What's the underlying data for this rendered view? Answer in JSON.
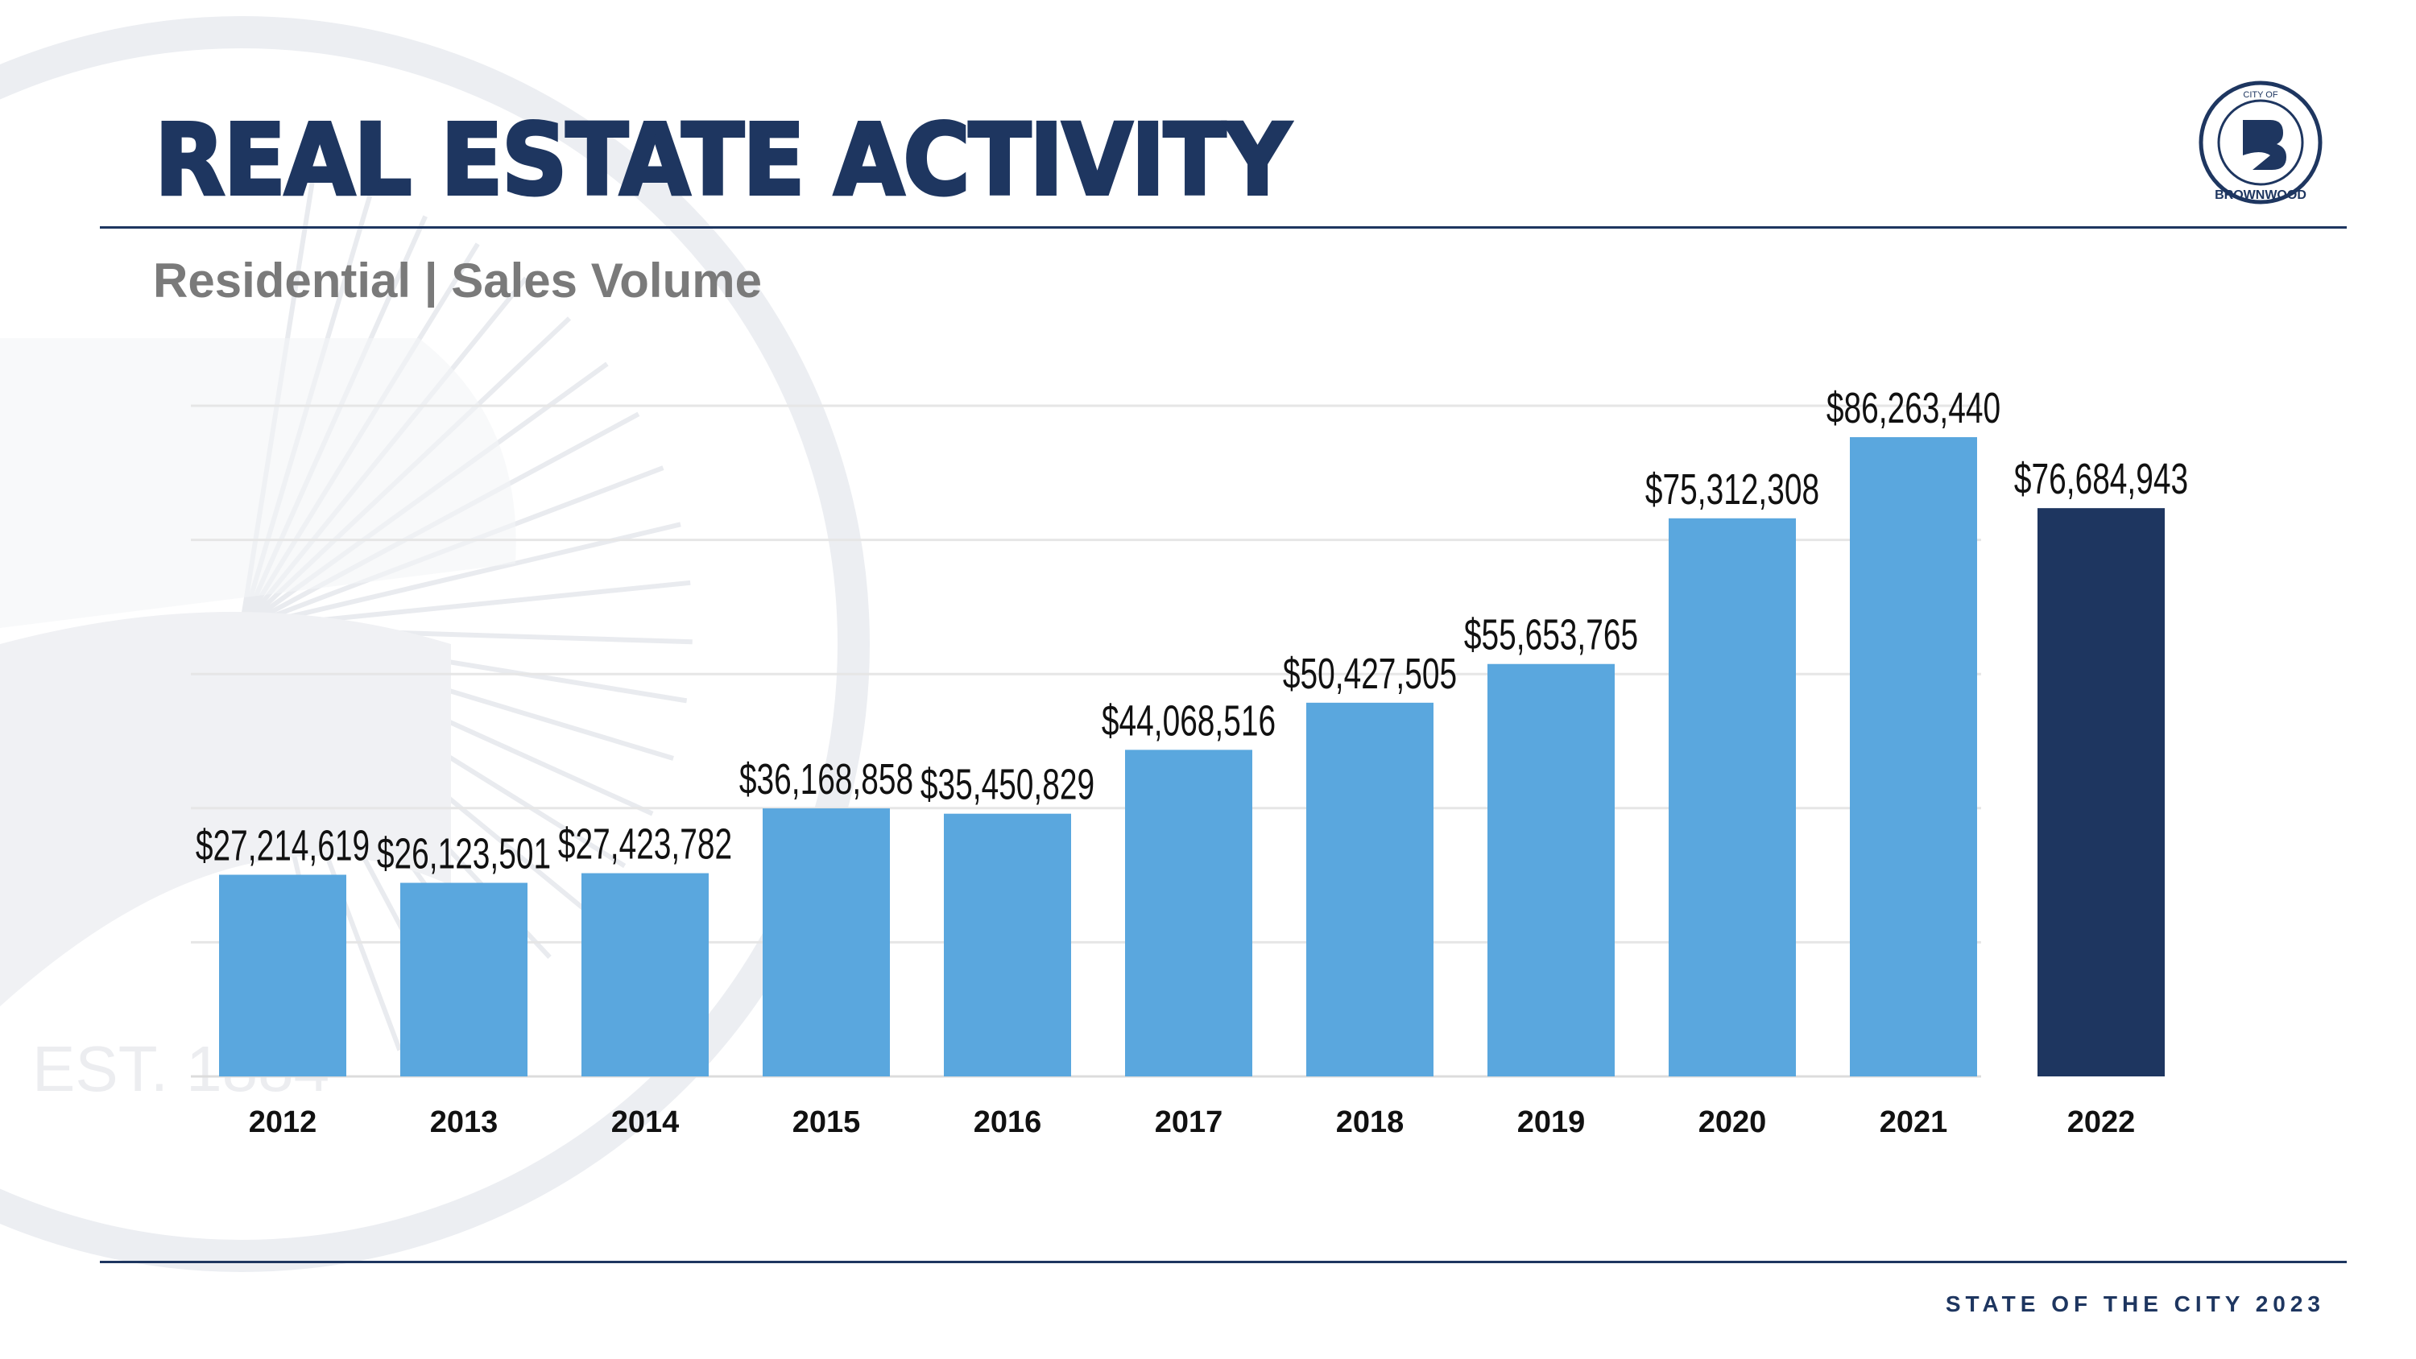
{
  "header": {
    "title": "REAL ESTATE ACTIVITY",
    "subtitle": "Residential | Sales Volume"
  },
  "logo": {
    "top_text": "CITY OF",
    "bottom_text": "BROWNWOOD",
    "est": "EST. 1884"
  },
  "watermark": {
    "text": "EST. 1884"
  },
  "footer": {
    "text": "STATE OF THE CITY 2023"
  },
  "colors": {
    "bar": "#5aa7de",
    "highlight": "#1e3660",
    "grid": "#e6e6e6",
    "navy": "#1e3660"
  },
  "chart_data": {
    "type": "bar",
    "title": "Residential | Sales Volume",
    "xlabel": "",
    "ylabel": "",
    "ylim": [
      0,
      90500000
    ],
    "grid": true,
    "categories": [
      "2012",
      "2013",
      "2014",
      "2015",
      "2016",
      "2017",
      "2018",
      "2019",
      "2020",
      "2021",
      "2022"
    ],
    "values": [
      27214619,
      26123501,
      27423782,
      36168858,
      35450829,
      44068516,
      50427505,
      55653765,
      75312308,
      86263440,
      76684943
    ],
    "labels": [
      "$27,214,619",
      "$26,123,501",
      "$27,423,782",
      "$36,168,858",
      "$35,450,829",
      "$44,068,516",
      "$50,427,505",
      "$55,653,765",
      "$75,312,308",
      "$86,263,440",
      "$76,684,943"
    ],
    "highlight_index": 10
  }
}
